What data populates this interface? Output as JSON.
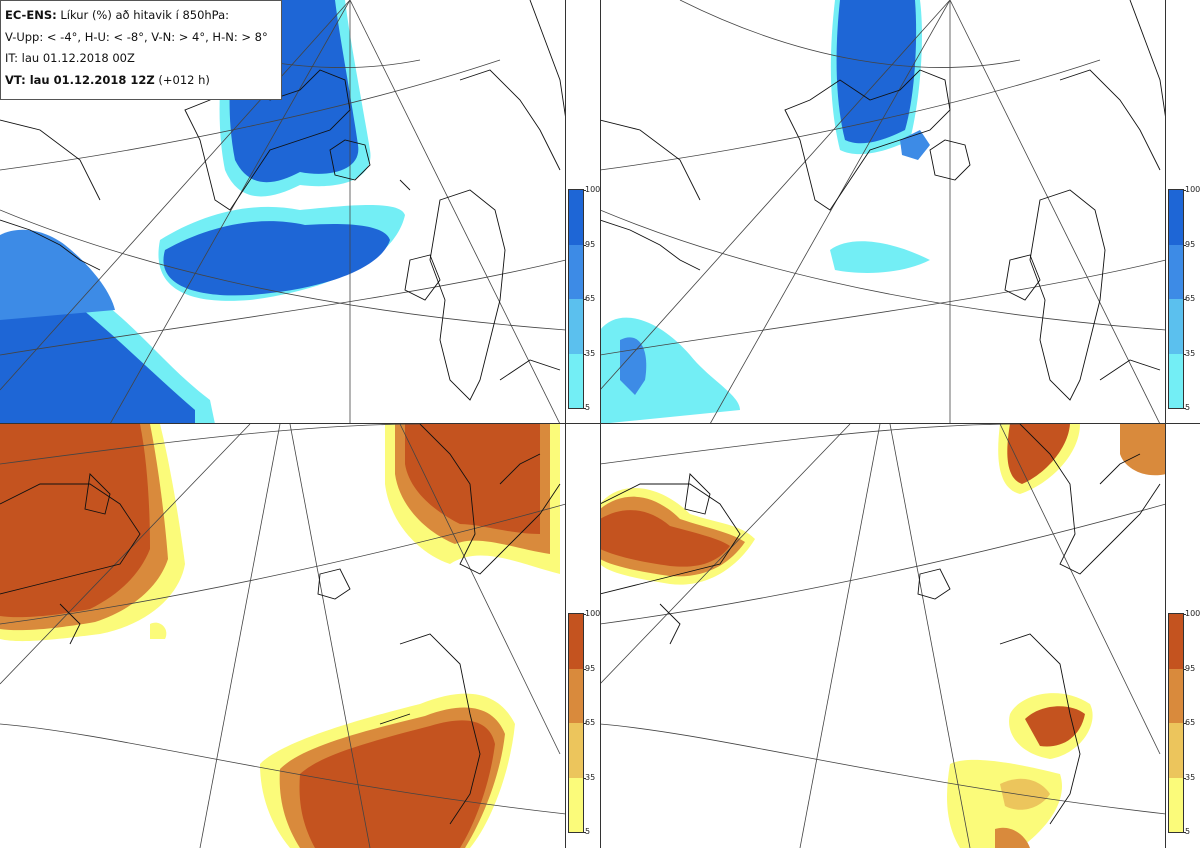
{
  "legend": {
    "line1_bold": "EC-ENS:",
    "line1_rest": " Líkur (%) að hitavik í 850hPa:",
    "line2": "V-Upp: < -4°, H-U: < -8°, V-N: > 4°, H-N: > 8°",
    "line3": "IT: lau 01.12.2018 00Z",
    "line4_bold": "VT: lau 01.12.2018 12Z",
    "line4_rest": " (+012 h)"
  },
  "colorbars": {
    "cold": {
      "ticks": [
        "100",
        "95",
        "65",
        "35",
        "5"
      ],
      "colors": [
        "#1e66d6",
        "#3d8be6",
        "#5bc0ee",
        "#73eef5"
      ]
    },
    "warm": {
      "ticks": [
        "100",
        "95",
        "65",
        "35",
        "5"
      ],
      "colors": [
        "#c4531f",
        "#d98a3c",
        "#ecc55c",
        "#fbfb7a"
      ]
    }
  },
  "panels": [
    {
      "name": "V-Upp",
      "palette": "cold"
    },
    {
      "name": "H-U",
      "palette": "cold"
    },
    {
      "name": "V-N",
      "palette": "warm"
    },
    {
      "name": "H-N",
      "palette": "warm"
    }
  ]
}
